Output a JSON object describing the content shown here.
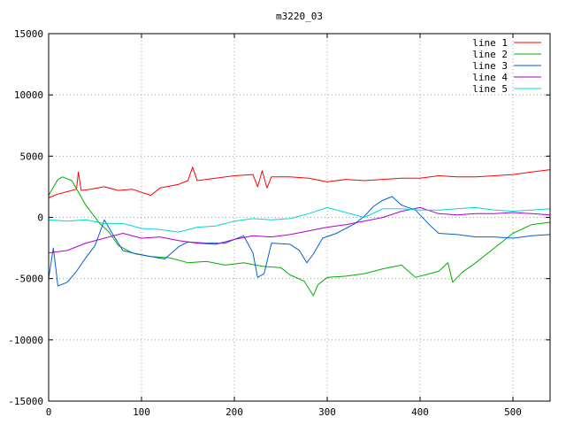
{
  "chart_data": {
    "type": "line",
    "title": "m3220_03",
    "xlabel": "",
    "ylabel": "",
    "xlim": [
      0,
      540
    ],
    "ylim": [
      -15000,
      15000
    ],
    "x_ticks": [
      0,
      100,
      200,
      300,
      400,
      500
    ],
    "y_ticks": [
      -15000,
      -10000,
      -5000,
      0,
      5000,
      10000,
      15000
    ],
    "grid": true,
    "legend_position": "top-right",
    "series": [
      {
        "name": "line 1",
        "color": "#ff0000",
        "points": [
          [
            0,
            1600
          ],
          [
            10,
            1900
          ],
          [
            20,
            2100
          ],
          [
            30,
            2300
          ],
          [
            32,
            3700
          ],
          [
            35,
            2200
          ],
          [
            45,
            2300
          ],
          [
            60,
            2500
          ],
          [
            75,
            2200
          ],
          [
            90,
            2300
          ],
          [
            110,
            1800
          ],
          [
            120,
            2400
          ],
          [
            140,
            2700
          ],
          [
            150,
            3000
          ],
          [
            155,
            4100
          ],
          [
            160,
            3000
          ],
          [
            180,
            3200
          ],
          [
            200,
            3400
          ],
          [
            220,
            3500
          ],
          [
            225,
            2500
          ],
          [
            230,
            3800
          ],
          [
            235,
            2400
          ],
          [
            240,
            3300
          ],
          [
            260,
            3300
          ],
          [
            280,
            3200
          ],
          [
            300,
            2900
          ],
          [
            320,
            3100
          ],
          [
            340,
            3000
          ],
          [
            360,
            3100
          ],
          [
            380,
            3200
          ],
          [
            400,
            3200
          ],
          [
            420,
            3400
          ],
          [
            440,
            3300
          ],
          [
            460,
            3300
          ],
          [
            480,
            3400
          ],
          [
            500,
            3500
          ],
          [
            520,
            3700
          ],
          [
            540,
            3900
          ]
        ]
      },
      {
        "name": "line 2",
        "color": "#00b000",
        "points": [
          [
            0,
            1800
          ],
          [
            10,
            3100
          ],
          [
            15,
            3300
          ],
          [
            25,
            3000
          ],
          [
            40,
            1000
          ],
          [
            55,
            -500
          ],
          [
            65,
            -1200
          ],
          [
            75,
            -2300
          ],
          [
            90,
            -2900
          ],
          [
            110,
            -3200
          ],
          [
            130,
            -3300
          ],
          [
            150,
            -3700
          ],
          [
            170,
            -3600
          ],
          [
            190,
            -3900
          ],
          [
            210,
            -3700
          ],
          [
            230,
            -4000
          ],
          [
            250,
            -4100
          ],
          [
            260,
            -4700
          ],
          [
            275,
            -5200
          ],
          [
            285,
            -6400
          ],
          [
            290,
            -5500
          ],
          [
            300,
            -4900
          ],
          [
            320,
            -4800
          ],
          [
            340,
            -4600
          ],
          [
            360,
            -4200
          ],
          [
            380,
            -3900
          ],
          [
            395,
            -4900
          ],
          [
            410,
            -4600
          ],
          [
            420,
            -4400
          ],
          [
            430,
            -3700
          ],
          [
            435,
            -5300
          ],
          [
            445,
            -4500
          ],
          [
            460,
            -3700
          ],
          [
            480,
            -2500
          ],
          [
            500,
            -1300
          ],
          [
            520,
            -600
          ],
          [
            540,
            -400
          ]
        ]
      },
      {
        "name": "line 3",
        "color": "#0060d0",
        "points": [
          [
            0,
            -5000
          ],
          [
            5,
            -2500
          ],
          [
            10,
            -5600
          ],
          [
            20,
            -5300
          ],
          [
            30,
            -4400
          ],
          [
            40,
            -3300
          ],
          [
            50,
            -2300
          ],
          [
            60,
            -200
          ],
          [
            70,
            -1500
          ],
          [
            80,
            -2700
          ],
          [
            95,
            -3000
          ],
          [
            110,
            -3200
          ],
          [
            125,
            -3400
          ],
          [
            140,
            -2400
          ],
          [
            150,
            -2000
          ],
          [
            170,
            -2100
          ],
          [
            190,
            -2100
          ],
          [
            210,
            -1500
          ],
          [
            220,
            -2900
          ],
          [
            225,
            -4900
          ],
          [
            232,
            -4600
          ],
          [
            240,
            -2100
          ],
          [
            260,
            -2200
          ],
          [
            270,
            -2700
          ],
          [
            278,
            -3700
          ],
          [
            285,
            -3000
          ],
          [
            295,
            -1700
          ],
          [
            310,
            -1300
          ],
          [
            320,
            -900
          ],
          [
            330,
            -500
          ],
          [
            340,
            100
          ],
          [
            350,
            900
          ],
          [
            360,
            1400
          ],
          [
            370,
            1700
          ],
          [
            380,
            1000
          ],
          [
            395,
            600
          ],
          [
            410,
            -600
          ],
          [
            420,
            -1300
          ],
          [
            440,
            -1400
          ],
          [
            460,
            -1600
          ],
          [
            480,
            -1600
          ],
          [
            500,
            -1700
          ],
          [
            520,
            -1500
          ],
          [
            540,
            -1400
          ]
        ]
      },
      {
        "name": "line 4",
        "color": "#b000d0",
        "points": [
          [
            0,
            -2900
          ],
          [
            20,
            -2700
          ],
          [
            40,
            -2100
          ],
          [
            60,
            -1700
          ],
          [
            80,
            -1300
          ],
          [
            100,
            -1700
          ],
          [
            120,
            -1600
          ],
          [
            140,
            -1900
          ],
          [
            160,
            -2100
          ],
          [
            180,
            -2200
          ],
          [
            200,
            -1800
          ],
          [
            220,
            -1500
          ],
          [
            240,
            -1600
          ],
          [
            260,
            -1400
          ],
          [
            280,
            -1100
          ],
          [
            300,
            -800
          ],
          [
            320,
            -600
          ],
          [
            340,
            -300
          ],
          [
            360,
            0
          ],
          [
            380,
            500
          ],
          [
            400,
            800
          ],
          [
            420,
            300
          ],
          [
            440,
            200
          ],
          [
            460,
            300
          ],
          [
            480,
            300
          ],
          [
            500,
            400
          ],
          [
            520,
            300
          ],
          [
            540,
            200
          ]
        ]
      },
      {
        "name": "line 5",
        "color": "#00d8d8",
        "points": [
          [
            0,
            -200
          ],
          [
            20,
            -300
          ],
          [
            40,
            -200
          ],
          [
            60,
            -500
          ],
          [
            80,
            -500
          ],
          [
            100,
            -900
          ],
          [
            120,
            -1000
          ],
          [
            140,
            -1200
          ],
          [
            160,
            -800
          ],
          [
            180,
            -700
          ],
          [
            200,
            -300
          ],
          [
            220,
            -100
          ],
          [
            240,
            -200
          ],
          [
            260,
            -100
          ],
          [
            280,
            300
          ],
          [
            300,
            800
          ],
          [
            320,
            400
          ],
          [
            340,
            0
          ],
          [
            360,
            700
          ],
          [
            380,
            700
          ],
          [
            400,
            600
          ],
          [
            420,
            600
          ],
          [
            440,
            700
          ],
          [
            460,
            800
          ],
          [
            480,
            600
          ],
          [
            500,
            500
          ],
          [
            520,
            600
          ],
          [
            540,
            700
          ]
        ]
      }
    ]
  }
}
